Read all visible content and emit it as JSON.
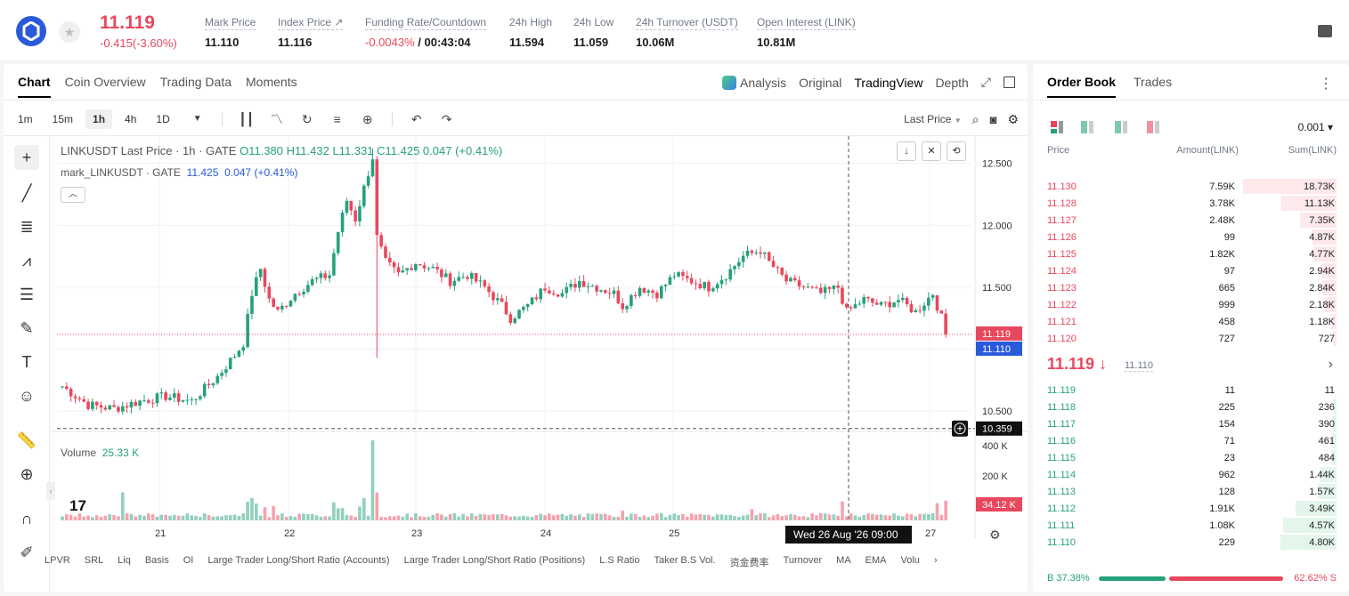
{
  "header": {
    "last_price": "11.119",
    "change": "-0.415(-3.60%)",
    "stats": [
      {
        "label": "Mark Price",
        "value": "11.110"
      },
      {
        "label": "Index Price ↗",
        "value": "11.116"
      },
      {
        "label": "Funding Rate/Countdown",
        "value_red": "-0.0043%",
        "value": " / 00:43:04"
      },
      {
        "label": "24h High",
        "value": "11.594"
      },
      {
        "label": "24h Low",
        "value": "11.059"
      },
      {
        "label": "24h Turnover (USDT)",
        "value": "10.06M"
      },
      {
        "label": "Open Interest (LINK)",
        "value": "10.81M"
      }
    ]
  },
  "chart_tabs": [
    "Chart",
    "Coin Overview",
    "Trading Data",
    "Moments"
  ],
  "view_tabs": [
    "Analysis",
    "Original",
    "TradingView",
    "Depth"
  ],
  "timeframes": [
    "1m",
    "15m",
    "1h",
    "4h",
    "1D"
  ],
  "toolbar_right": {
    "price_type": "Last Price"
  },
  "legend": {
    "main_title": "LINKUSDT Last Price · 1h · GATE",
    "o": "O11.380",
    "h": "H11.432",
    "l": "L11.331",
    "c": "C11.425",
    "chg": "0.047 (+0.41%)",
    "mark_title": "mark_LINKUSDT · GATE",
    "mark_val": "11.425",
    "mark_chg": "0.047 (+0.41%)"
  },
  "volume_legend": {
    "label": "Volume",
    "value": "25.33 K"
  },
  "tv_logo": "17",
  "indicators": [
    "LPVR",
    "SRL",
    "Liq",
    "Basis",
    "OI",
    "Large Trader Long/Short Ratio (Accounts)",
    "Large Trader Long/Short Ratio (Positions)",
    "L.S Ratio",
    "Taker B.S Vol.",
    "资金费率",
    "Turnover",
    "MA",
    "EMA",
    "Volu"
  ],
  "chart_data": {
    "type": "candlestick",
    "title": "LINKUSDT Last Price · 1h · GATE",
    "price_axis": {
      "ticks": [
        12.5,
        12.0,
        11.5,
        11.0,
        10.5
      ],
      "labels": [
        "12.500",
        "12.000",
        "11.500",
        "",
        "10.500"
      ],
      "range": [
        10.35,
        12.72
      ]
    },
    "volume_axis": {
      "ticks": [
        400000,
        200000
      ],
      "labels": [
        "400 K",
        "200 K"
      ]
    },
    "x_ticks": [
      "21",
      "22",
      "23",
      "24",
      "25",
      "27"
    ],
    "price_labels": {
      "last": "11.119",
      "mark": "11.110",
      "crosshair": "10.359",
      "volume": "34.12 K"
    },
    "crosshair_time": "Wed 26 Aug '26   09:00",
    "colors": {
      "up": "#26a17b",
      "down": "#e8485d",
      "mark": "#2a5ada"
    },
    "keypoints": [
      [
        0,
        10.7
      ],
      [
        6,
        10.55
      ],
      [
        12,
        10.52
      ],
      [
        18,
        10.58
      ],
      [
        24,
        10.62
      ],
      [
        30,
        10.58
      ],
      [
        36,
        10.78
      ],
      [
        40,
        10.95
      ],
      [
        42,
        11.05
      ],
      [
        44,
        11.45
      ],
      [
        46,
        11.65
      ],
      [
        48,
        11.4
      ],
      [
        50,
        11.3
      ],
      [
        54,
        11.45
      ],
      [
        58,
        11.55
      ],
      [
        62,
        11.6
      ],
      [
        64,
        11.95
      ],
      [
        66,
        12.2
      ],
      [
        68,
        12.05
      ],
      [
        70,
        12.3
      ],
      [
        72,
        12.55
      ],
      [
        73,
        11.9
      ],
      [
        75,
        11.7
      ],
      [
        78,
        11.6
      ],
      [
        82,
        11.7
      ],
      [
        86,
        11.65
      ],
      [
        90,
        11.55
      ],
      [
        94,
        11.6
      ],
      [
        98,
        11.5
      ],
      [
        102,
        11.35
      ],
      [
        104,
        11.25
      ],
      [
        108,
        11.35
      ],
      [
        112,
        11.5
      ],
      [
        116,
        11.45
      ],
      [
        120,
        11.55
      ],
      [
        124,
        11.5
      ],
      [
        128,
        11.45
      ],
      [
        130,
        11.35
      ],
      [
        134,
        11.5
      ],
      [
        138,
        11.45
      ],
      [
        142,
        11.6
      ],
      [
        146,
        11.55
      ],
      [
        150,
        11.5
      ],
      [
        154,
        11.6
      ],
      [
        158,
        11.75
      ],
      [
        162,
        11.8
      ],
      [
        164,
        11.7
      ],
      [
        168,
        11.55
      ],
      [
        172,
        11.5
      ],
      [
        176,
        11.45
      ],
      [
        180,
        11.5
      ],
      [
        182,
        11.3
      ],
      [
        186,
        11.4
      ],
      [
        190,
        11.35
      ],
      [
        194,
        11.4
      ],
      [
        198,
        11.3
      ],
      [
        202,
        11.45
      ],
      [
        204,
        11.25
      ],
      [
        205,
        11.12
      ]
    ],
    "volume_spikes": [
      [
        14,
        0.35
      ],
      [
        44,
        0.28
      ],
      [
        49,
        0.18
      ],
      [
        70,
        0.28
      ],
      [
        72,
        1.0
      ],
      [
        73,
        0.35
      ],
      [
        130,
        0.12
      ],
      [
        160,
        0.14
      ]
    ]
  },
  "order_book": {
    "tabs": [
      "Order Book",
      "Trades"
    ],
    "precision": "0.001 ▾",
    "headers": {
      "price": "Price",
      "amount": "Amount(LINK)",
      "sum": "Sum(LINK)"
    },
    "asks": [
      {
        "p": "11.130",
        "a": "7.59K",
        "s": "18.73K",
        "f": 1.0
      },
      {
        "p": "11.128",
        "a": "3.78K",
        "s": "11.13K",
        "f": 0.59
      },
      {
        "p": "11.127",
        "a": "2.48K",
        "s": "7.35K",
        "f": 0.39
      },
      {
        "p": "11.126",
        "a": "99",
        "s": "4.87K",
        "f": 0.26
      },
      {
        "p": "11.125",
        "a": "1.82K",
        "s": "4.77K",
        "f": 0.25
      },
      {
        "p": "11.124",
        "a": "97",
        "s": "2.94K",
        "f": 0.16
      },
      {
        "p": "11.123",
        "a": "665",
        "s": "2.84K",
        "f": 0.15
      },
      {
        "p": "11.122",
        "a": "999",
        "s": "2.18K",
        "f": 0.12
      },
      {
        "p": "11.121",
        "a": "458",
        "s": "1.18K",
        "f": 0.06
      },
      {
        "p": "11.120",
        "a": "727",
        "s": "727",
        "f": 0.04
      }
    ],
    "mid_price": "11.119 ↓",
    "mid_mark": "11.110",
    "bids": [
      {
        "p": "11.119",
        "a": "11",
        "s": "11",
        "f": 0.0
      },
      {
        "p": "11.118",
        "a": "225",
        "s": "236",
        "f": 0.03
      },
      {
        "p": "11.117",
        "a": "154",
        "s": "390",
        "f": 0.05
      },
      {
        "p": "11.116",
        "a": "71",
        "s": "461",
        "f": 0.06
      },
      {
        "p": "11.115",
        "a": "23",
        "s": "484",
        "f": 0.06
      },
      {
        "p": "11.114",
        "a": "962",
        "s": "1.44K",
        "f": 0.18
      },
      {
        "p": "11.113",
        "a": "128",
        "s": "1.57K",
        "f": 0.2
      },
      {
        "p": "11.112",
        "a": "1.91K",
        "s": "3.49K",
        "f": 0.44
      },
      {
        "p": "11.111",
        "a": "1.08K",
        "s": "4.57K",
        "f": 0.57
      },
      {
        "p": "11.110",
        "a": "229",
        "s": "4.80K",
        "f": 0.6
      }
    ],
    "ratio": {
      "buy": "B 37.38%",
      "sell": "62.62% S",
      "buy_frac": 0.3738
    }
  }
}
